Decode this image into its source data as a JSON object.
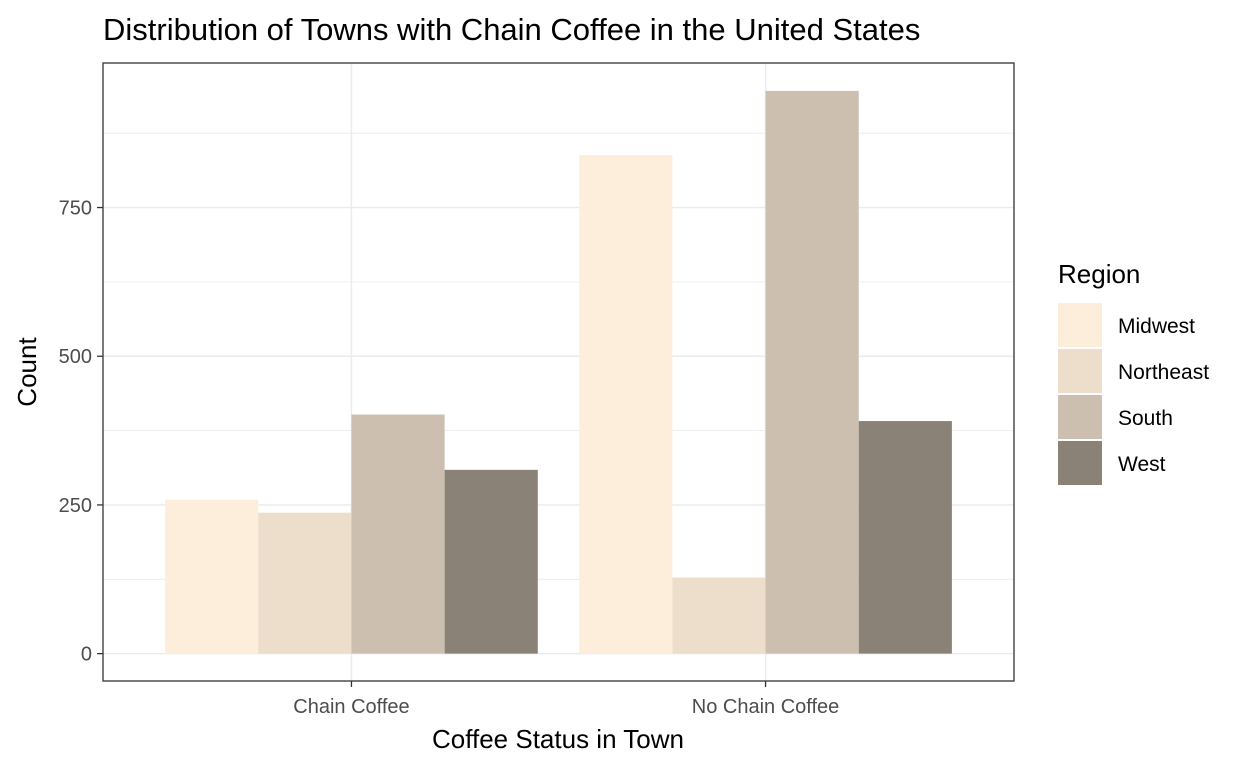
{
  "chart_data": {
    "type": "bar",
    "title": "Distribution of Towns with Chain Coffee in the United States",
    "xlabel": "Coffee Status in Town",
    "ylabel": "Count",
    "categories": [
      "Chain Coffee",
      "No Chain Coffee"
    ],
    "series": [
      {
        "name": "Midwest",
        "values": [
          259,
          838
        ],
        "color": "#FDEEDB"
      },
      {
        "name": "Northeast",
        "values": [
          237,
          128
        ],
        "color": "#EDDECC"
      },
      {
        "name": "South",
        "values": [
          402,
          946
        ],
        "color": "#CCBFB0"
      },
      {
        "name": "West",
        "values": [
          309,
          391
        ],
        "color": "#8B8277"
      }
    ],
    "ylim": [
      -46,
      993
    ],
    "yticks": [
      0,
      250,
      500,
      750
    ],
    "ytick_labels": [
      "0",
      "250",
      "500",
      "750"
    ],
    "grid": true,
    "legend": {
      "title": "Region",
      "placement": "right"
    }
  }
}
